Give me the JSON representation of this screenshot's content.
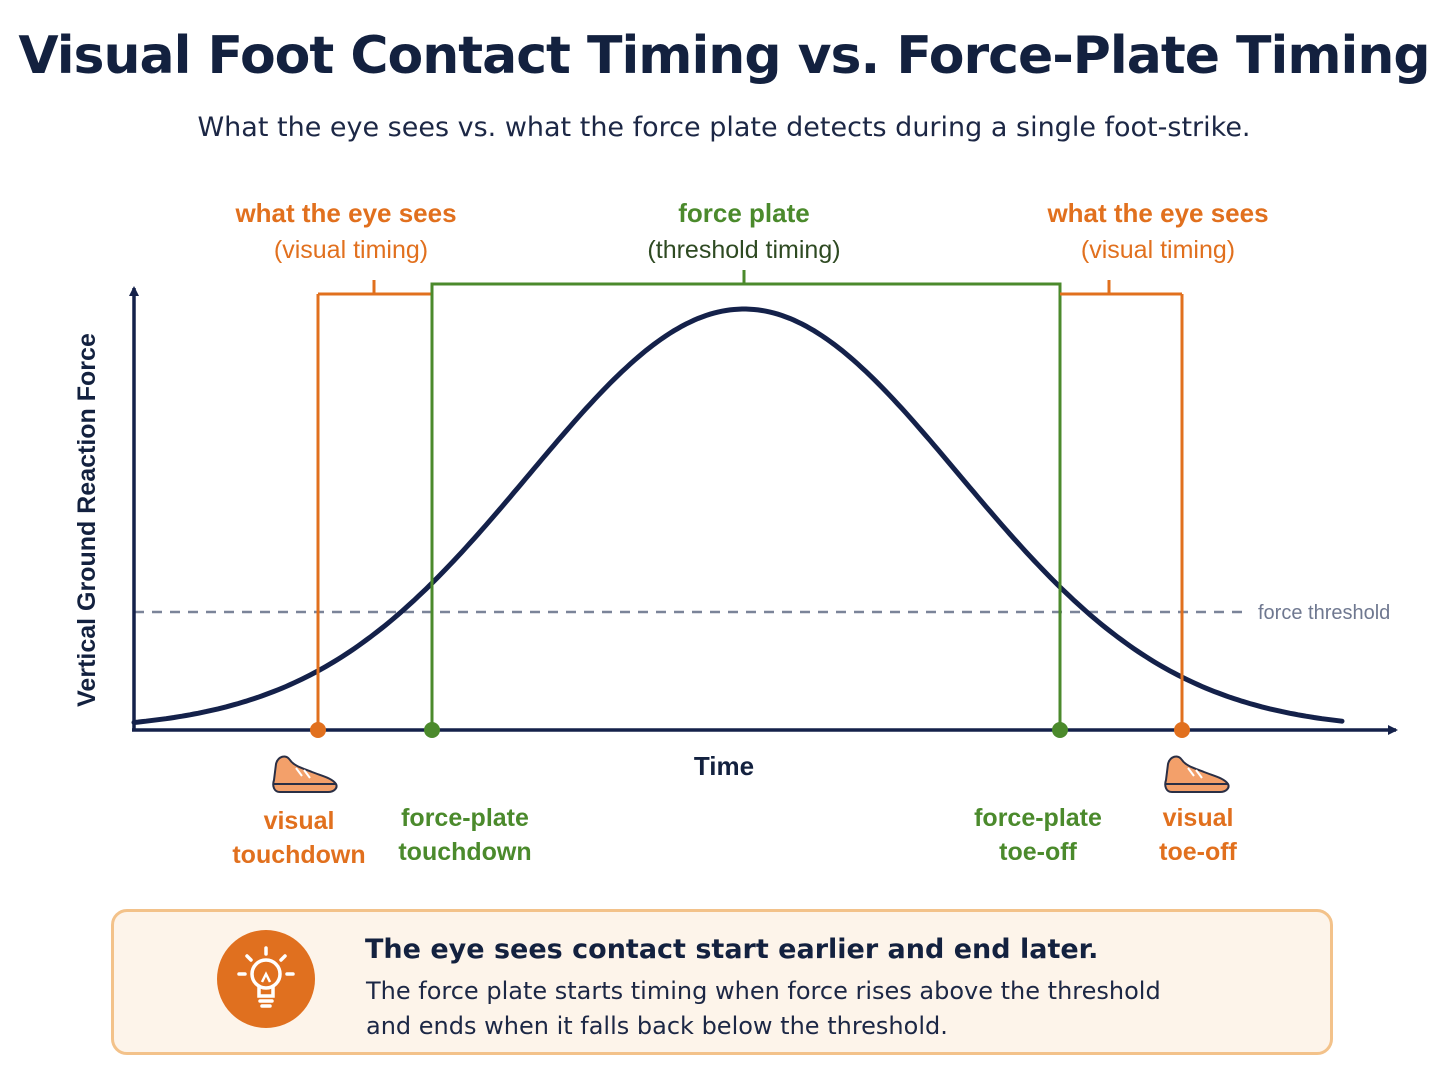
{
  "header": {
    "title": "Visual Foot Contact Timing vs. Force-Plate Timing",
    "subtitle": "What the eye sees vs. what the force plate detects during a single foot-strike."
  },
  "axes": {
    "y_label": "Vertical Ground Reaction Force",
    "x_label": "Time"
  },
  "threshold": {
    "label": "force threshold"
  },
  "brackets": {
    "visual_left": {
      "line1": "what the eye sees",
      "line2": "(visual timing)"
    },
    "force_plate": {
      "line1": "force plate",
      "line2": "(threshold timing)"
    },
    "visual_right": {
      "line1": "what the eye sees",
      "line2": "(visual timing)"
    }
  },
  "events": {
    "visual_touchdown": {
      "line1": "visual",
      "line2": "touchdown"
    },
    "force_touchdown": {
      "line1": "force-plate",
      "line2": "touchdown"
    },
    "force_toeoff": {
      "line1": "force-plate",
      "line2": "toe-off"
    },
    "visual_toeoff": {
      "line1": "visual",
      "line2": "toe-off"
    }
  },
  "callout": {
    "icon": "lightbulb-icon",
    "title": "The eye sees contact start earlier and end later.",
    "line1": "The force plate starts timing when force rises above the threshold",
    "line2": "and ends when it falls back below the threshold."
  },
  "colors": {
    "curve": "#14214a",
    "visual": "#e1701e",
    "force": "#4b8a2c",
    "threshold": "#7b8499"
  }
}
